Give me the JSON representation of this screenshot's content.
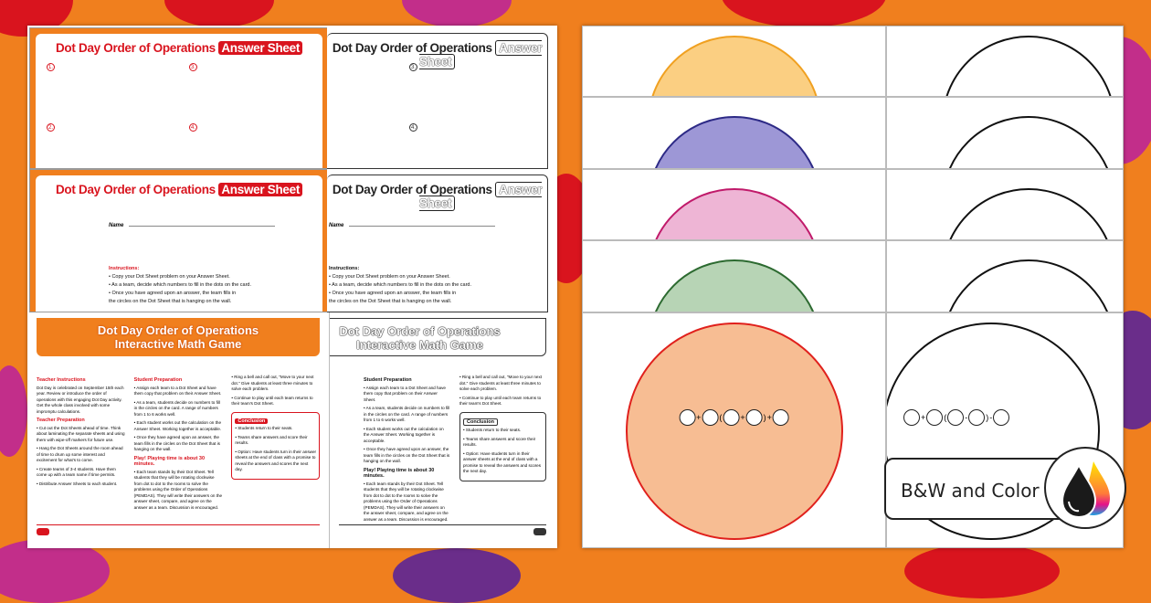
{
  "colors": {
    "background": "#f07f1e",
    "brand_red": "#d9141e"
  },
  "answer_sheet": {
    "title": "Dot Day Order of Operations",
    "highlight": "Answer Sheet",
    "numbers": [
      "1.",
      "2.",
      "3.",
      "4."
    ],
    "name_label": "Name",
    "instructions_heading": "Instructions:",
    "instructions": [
      "• Copy your Dot Sheet problem on your Answer Sheet.",
      "• As a team, decide which numbers to fill in the dots on the card.",
      "• Once you have agreed upon an answer, the team fills in",
      "  the circles on the Dot Sheet that is hanging on the wall."
    ]
  },
  "game_page": {
    "title_line1": "Dot Day Order of Operations",
    "title_line2": "Interactive Math Game",
    "teacher_instructions_heading": "Teacher Instructions",
    "teacher_instructions": "Dot Day is celebrated on September 15th each year. Review or introduce the order of operations with this engaging Dot Day activity. Get the whole class involved with some impromptu calculations.",
    "teacher_prep_heading": "Teacher Preparation",
    "teacher_prep": [
      "• Cut out the Dot Sheets ahead of time. Think about laminating the separate sheets and using them with wipe-off markers for future use.",
      "• Hang the Dot Sheets around the room ahead of time to drum up some interest and excitement for what's to come.",
      "• Create teams of 3-4 students. Have them come up with a team name if time permits.",
      "• Distribute Answer Sheets to each student."
    ],
    "student_prep_heading": "Student Preparation",
    "student_prep": [
      "• Assign each team to a Dot Sheet and have them copy that problem on their Answer Sheet.",
      "• As a team, students decide on numbers to fill in the circles on the card. A range of numbers from 1 to 6 works well.",
      "• Each student works out the calculation on the Answer Sheet. Working together is acceptable.",
      "• Once they have agreed upon an answer, the team fills in the circles on the Dot Sheet that is hanging on the wall."
    ],
    "play_heading": "Play! Playing time is about 30 minutes.",
    "play": [
      "• Each team stands by their Dot Sheet. Tell students that they will be rotating clockwise from dot to dot to the rooms to solve the problems using the Order of Operations (PEMDAS). They will write their answers on the answer sheet, compare, and agree on the answer as a team. Discussion is encouraged."
    ],
    "col3": [
      "• Ring a bell and call out, \"Move to your next dot.\" Give students at least three minutes to solve each problem.",
      "• Continue to play until each team returns to their team's Dot Sheet."
    ],
    "conclusion_heading": "Conclusion",
    "conclusion": [
      "• Students return to their seats.",
      "• Teams share answers and score their results.",
      "• Option: Have students turn in their answer sheets at the end of class with a promise to reveal the answers and scores the next day."
    ]
  },
  "dot_sheets": {
    "half_circles": [
      {
        "fill": "#fbcf82",
        "stroke": "#f0a020"
      },
      {
        "fill": "#9d97d6",
        "stroke": "#2d2a86"
      },
      {
        "fill": "#eeb5d5",
        "stroke": "#c01a6a"
      },
      {
        "fill": "#b7d4b5",
        "stroke": "#2c6a30"
      }
    ],
    "big_circle": {
      "fill": "#f7bd93",
      "stroke": "#e0201c"
    },
    "equation_color": [
      "+",
      "(",
      "+",
      ")",
      "+"
    ],
    "equation_bw": [
      "+",
      "(",
      "-",
      ")",
      "-"
    ]
  },
  "badge": {
    "label": "B&W and Color",
    "icon": "ink-drops-icon"
  }
}
